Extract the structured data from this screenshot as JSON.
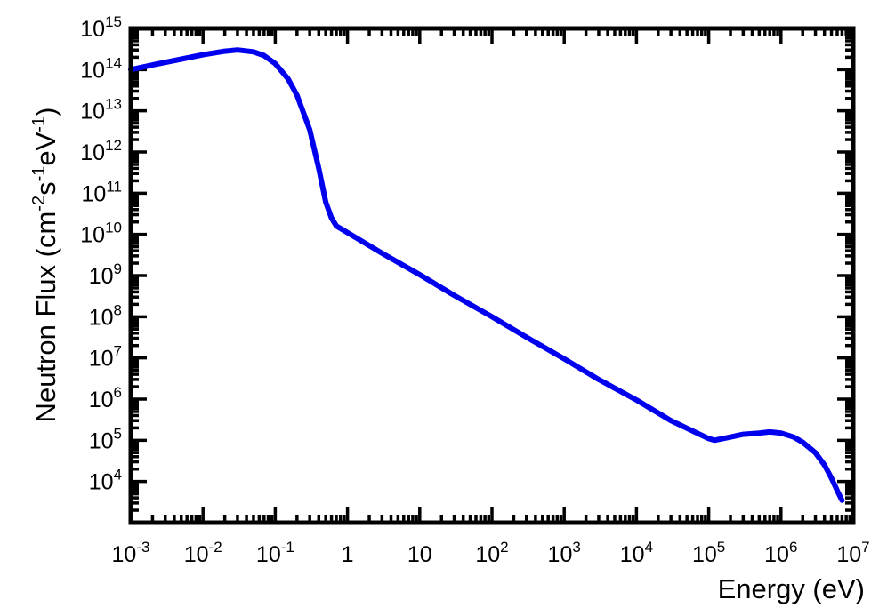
{
  "chart_data": {
    "type": "line",
    "title": "",
    "xlabel": "Energy (eV)",
    "ylabel": {
      "parts": [
        {
          "t": "Neutron Flux (cm"
        },
        {
          "t": "-2",
          "sup": true
        },
        {
          "t": "s"
        },
        {
          "t": "-1",
          "sup": true
        },
        {
          "t": "eV"
        },
        {
          "t": "-1",
          "sup": true
        },
        {
          "t": ")"
        }
      ]
    },
    "x_scale": "log",
    "y_scale": "log",
    "xlim": [
      0.001,
      10000000
    ],
    "ylim": [
      1000,
      1000000000000000
    ],
    "x_ticks": [
      {
        "value": 0.001,
        "base": "10",
        "exp": "-3"
      },
      {
        "value": 0.01,
        "base": "10",
        "exp": "-2"
      },
      {
        "value": 0.1,
        "base": "10",
        "exp": "-1"
      },
      {
        "value": 1,
        "base": "1",
        "exp": ""
      },
      {
        "value": 10,
        "base": "10",
        "exp": ""
      },
      {
        "value": 100,
        "base": "10",
        "exp": "2"
      },
      {
        "value": 1000,
        "base": "10",
        "exp": "3"
      },
      {
        "value": 10000,
        "base": "10",
        "exp": "4"
      },
      {
        "value": 100000,
        "base": "10",
        "exp": "5"
      },
      {
        "value": 1000000,
        "base": "10",
        "exp": "6"
      },
      {
        "value": 10000000,
        "base": "10",
        "exp": "7"
      }
    ],
    "y_ticks": [
      {
        "value": 10000,
        "base": "10",
        "exp": "4"
      },
      {
        "value": 100000,
        "base": "10",
        "exp": "5"
      },
      {
        "value": 1000000,
        "base": "10",
        "exp": "6"
      },
      {
        "value": 10000000,
        "base": "10",
        "exp": "7"
      },
      {
        "value": 100000000,
        "base": "10",
        "exp": "8"
      },
      {
        "value": 1000000000,
        "base": "10",
        "exp": "9"
      },
      {
        "value": 10000000000,
        "base": "10",
        "exp": "10"
      },
      {
        "value": 100000000000,
        "base": "10",
        "exp": "11"
      },
      {
        "value": 1000000000000,
        "base": "10",
        "exp": "12"
      },
      {
        "value": 10000000000000,
        "base": "10",
        "exp": "13"
      },
      {
        "value": 100000000000000,
        "base": "10",
        "exp": "14"
      },
      {
        "value": 1000000000000000,
        "base": "10",
        "exp": "15"
      }
    ],
    "grid": false,
    "legend": "none",
    "series": [
      {
        "color": "#0000ee",
        "x": [
          0.001,
          0.002,
          0.005,
          0.01,
          0.02,
          0.03,
          0.05,
          0.07,
          0.1,
          0.15,
          0.2,
          0.3,
          0.4,
          0.5,
          0.6,
          0.7,
          1,
          3,
          10,
          30,
          100,
          300,
          1000,
          3000,
          10000,
          30000,
          100000,
          120000,
          200000,
          300000,
          500000,
          700000,
          1000000,
          1500000,
          2000000,
          3000000,
          4000000,
          5000000,
          6000000,
          7000000
        ],
        "y": [
          100000000000000.0,
          130000000000000.0,
          180000000000000.0,
          230000000000000.0,
          280000000000000.0,
          300000000000000.0,
          270000000000000.0,
          220000000000000.0,
          140000000000000.0,
          60000000000000.0,
          24000000000000.0,
          3500000000000.0,
          400000000000.0,
          60000000000.0,
          25000000000.0,
          16000000000.0,
          11000000000.0,
          3500000000.0,
          1050000000.0,
          330000000.0,
          100000000.0,
          32000000.0,
          9500000.0,
          3000000.0,
          950000.0,
          300000.0,
          110000.0,
          100000.0,
          120000.0,
          140000.0,
          150000.0,
          160000.0,
          150000.0,
          120000.0,
          90000.0,
          50000.0,
          25000.0,
          12000.0,
          6000.0,
          3500.0
        ]
      }
    ]
  }
}
